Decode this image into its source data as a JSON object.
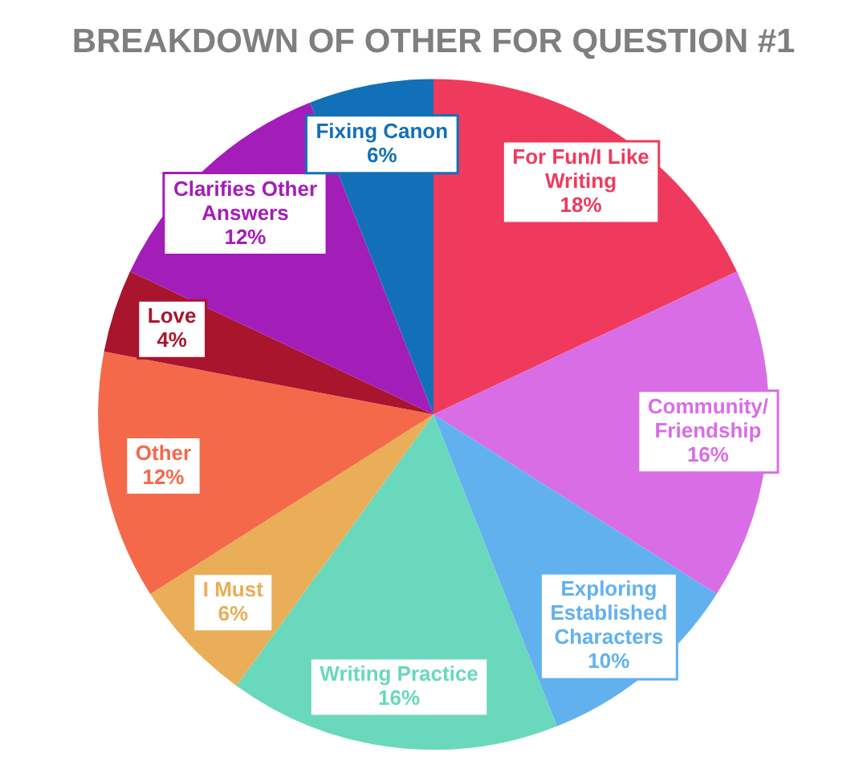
{
  "chart_data": {
    "type": "pie",
    "title": "BREAKDOWN OF OTHER FOR QUESTION #1",
    "categories": [
      "For Fun/I Like Writing",
      "Community/ Friendship",
      "Exploring Established Characters",
      "Writing Practice",
      "I Must",
      "Other",
      "Love",
      "Clarifies Other Answers",
      "Fixing Canon"
    ],
    "values": [
      18,
      16,
      10,
      16,
      6,
      12,
      4,
      12,
      6
    ],
    "colors": [
      "#ef3a5d",
      "#d96de6",
      "#62b1ef",
      "#6ad8bd",
      "#e9ae57",
      "#f4694a",
      "#a8152d",
      "#a31db8",
      "#1270b8"
    ],
    "value_labels": [
      "18%",
      "16%",
      "10%",
      "16%",
      "6%",
      "12%",
      "4%",
      "12%",
      "6%"
    ],
    "legend": false
  }
}
